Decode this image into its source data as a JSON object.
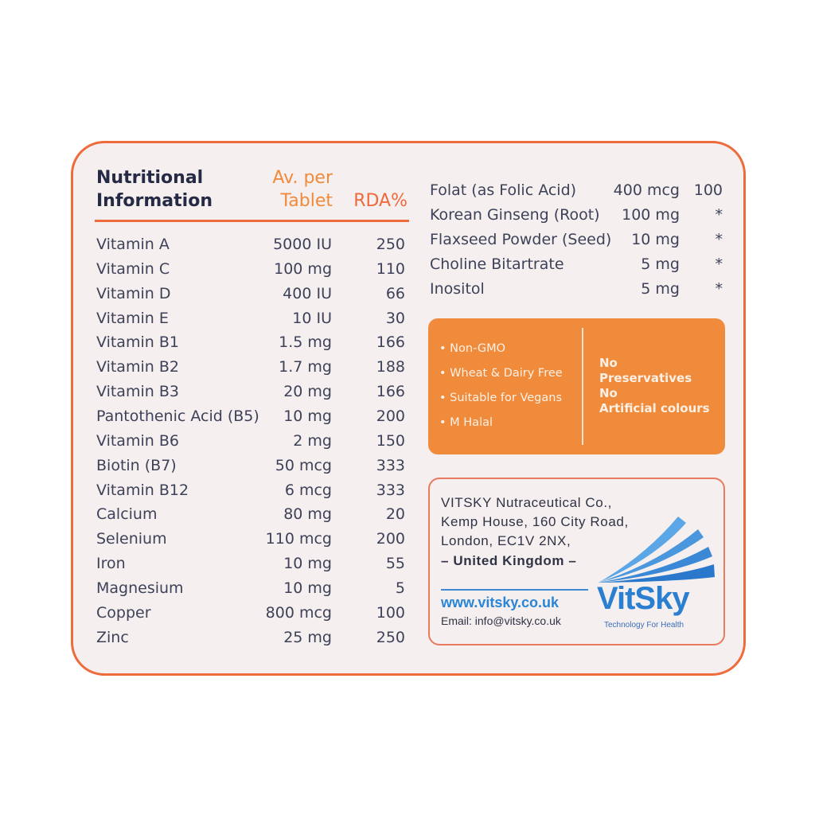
{
  "header": {
    "title_line1": "Nutritional",
    "title_line2": "Information",
    "col_amount_line1": "Av. per",
    "col_amount_line2": "Tablet",
    "col_rda": "RDA%"
  },
  "nutrients": [
    {
      "name": "Vitamin A",
      "amount": "5000 IU",
      "rda": "250"
    },
    {
      "name": "Vitamin C",
      "amount": "100 mg",
      "rda": "110"
    },
    {
      "name": "Vitamin D",
      "amount": "400 IU",
      "rda": "66"
    },
    {
      "name": "Vitamin E",
      "amount": "10 IU",
      "rda": "30"
    },
    {
      "name": "Vitamin B1",
      "amount": "1.5 mg",
      "rda": "166"
    },
    {
      "name": "Vitamin B2",
      "amount": "1.7 mg",
      "rda": "188"
    },
    {
      "name": "Vitamin B3",
      "amount": "20 mg",
      "rda": "166"
    },
    {
      "name": "Pantothenic Acid (B5)",
      "amount": "10 mg",
      "rda": "200"
    },
    {
      "name": "Vitamin B6",
      "amount": "2 mg",
      "rda": "150"
    },
    {
      "name": "Biotin (B7)",
      "amount": "50 mcg",
      "rda": "333"
    },
    {
      "name": "Vitamin B12",
      "amount": "6 mcg",
      "rda": "333"
    },
    {
      "name": "Calcium",
      "amount": "80 mg",
      "rda": "20"
    },
    {
      "name": "Selenium",
      "amount": "110 mcg",
      "rda": "200"
    },
    {
      "name": "Iron",
      "amount": "10 mg",
      "rda": "55"
    },
    {
      "name": "Magnesium",
      "amount": "10 mg",
      "rda": "5"
    },
    {
      "name": "Copper",
      "amount": "800 mcg",
      "rda": "100"
    },
    {
      "name": "Zinc",
      "amount": "25 mg",
      "rda": "250"
    }
  ],
  "extras": [
    {
      "name": "Folat (as Folic Acid)",
      "amount": "400 mcg",
      "rda": "100"
    },
    {
      "name": "Korean Ginseng (Root)",
      "amount": "100 mg",
      "rda": "*"
    },
    {
      "name": "Flaxseed Powder (Seed)",
      "amount": "10 mg",
      "rda": "*"
    },
    {
      "name": "Choline Bitartrate",
      "amount": "5 mg",
      "rda": "*"
    },
    {
      "name": "Inositol",
      "amount": "5 mg",
      "rda": "*"
    }
  ],
  "features": [
    "• Non-GMO",
    "• Wheat & Dairy Free",
    "• Suitable for Vegans",
    "• M Halal"
  ],
  "claims": [
    "No",
    "Preservatives",
    "No",
    "Artificial colours"
  ],
  "company": {
    "line1": "VITSKY   Nutraceutical   Co.,",
    "line2": "Kemp House, 160 City Road,",
    "line3": "London, EC1V 2NX,",
    "country": "– United Kingdom –",
    "website": "www.vitsky.co.uk",
    "email": "Email: info@vitsky.co.uk"
  },
  "logo": {
    "name": "VitSky",
    "tagline": "Technology For Health",
    "color": "#2a7fd0"
  },
  "colors": {
    "accent": "#ee6b3b",
    "orange_box": "#f08b3c",
    "text": "#3d4258"
  }
}
